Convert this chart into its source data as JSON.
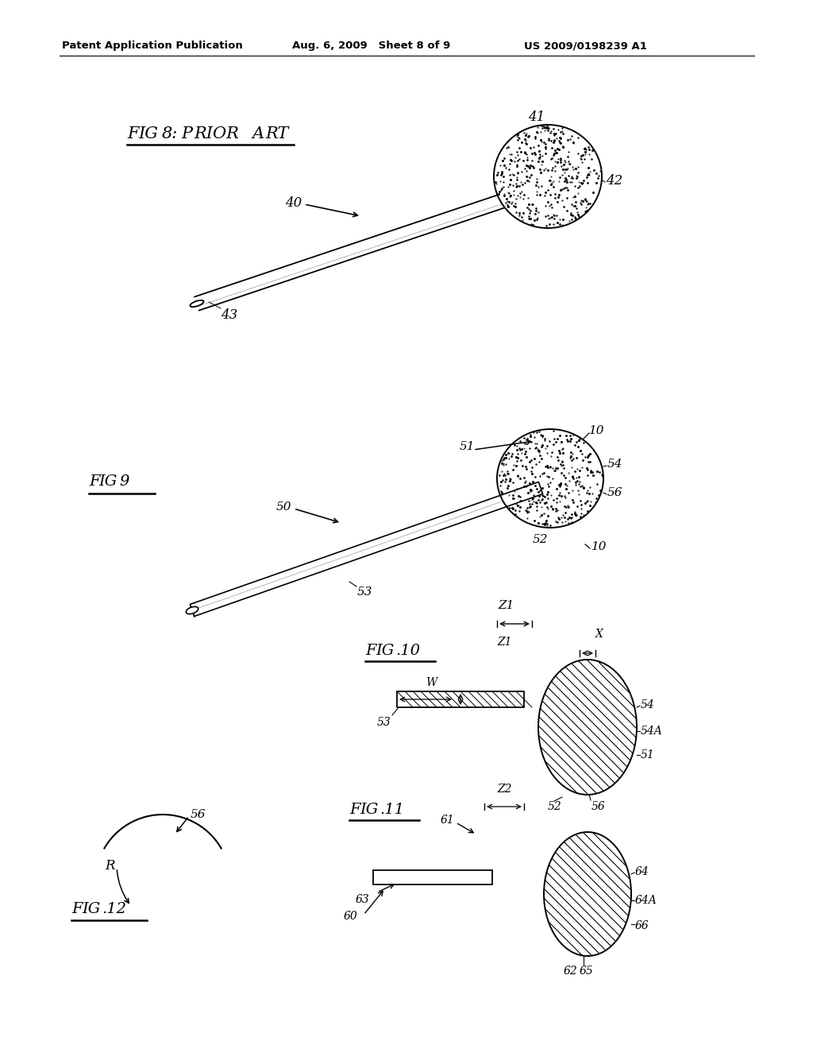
{
  "header_left": "Patent Application Publication",
  "header_mid": "Aug. 6, 2009   Sheet 8 of 9",
  "header_right": "US 2009/0198239 A1",
  "bg_color": "#ffffff"
}
